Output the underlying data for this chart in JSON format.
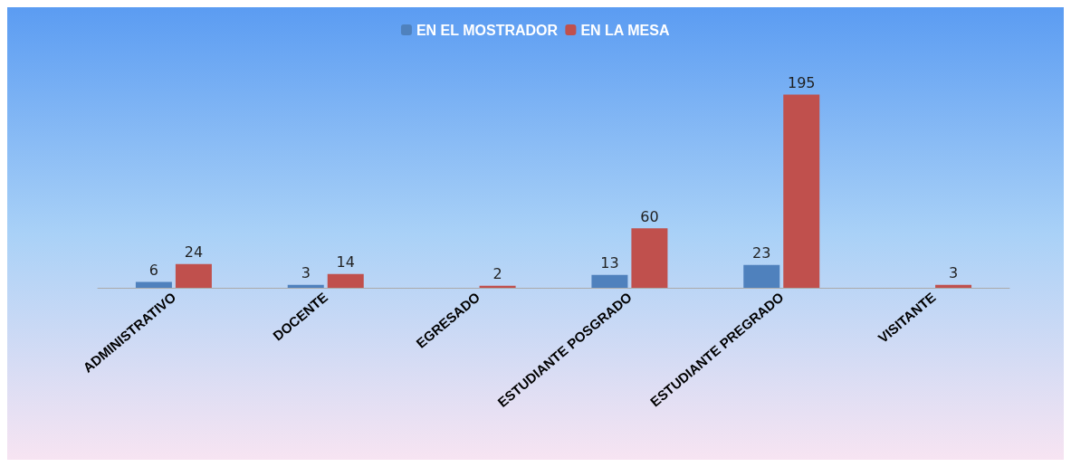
{
  "chart_data": {
    "type": "bar",
    "categories": [
      "ADMINISTRATIVO",
      "DOCENTE",
      "EGRESADO",
      "ESTUDIANTE POSGRADO",
      "ESTUDIANTE PREGRADO",
      "VISITANTE"
    ],
    "series": [
      {
        "name": "EN EL MOSTRADOR",
        "color": "#4f81bd",
        "values": [
          6,
          3,
          null,
          13,
          23,
          null
        ]
      },
      {
        "name": "EN LA MESA",
        "color": "#c0504d",
        "values": [
          24,
          14,
          2,
          60,
          195,
          3
        ]
      }
    ],
    "data_labels": true,
    "legend": "top"
  }
}
